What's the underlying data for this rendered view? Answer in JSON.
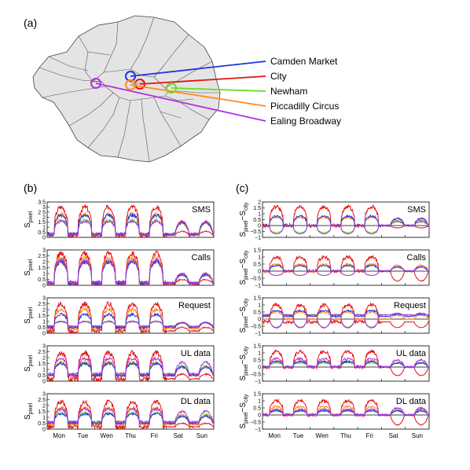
{
  "panels": {
    "a": "(a)",
    "b": "(b)",
    "c": "(c)"
  },
  "colors": {
    "Camden Market": "#2233dd",
    "City": "#e81010",
    "Newham": "#66dd22",
    "Piccadilly Circus": "#ff8c1a",
    "Ealing Broadway": "#b030e0"
  },
  "map": {
    "locations": [
      "Camden Market",
      "City",
      "Newham",
      "Piccadilly Circus",
      "Ealing Broadway"
    ]
  },
  "chart_data": [
    {
      "type": "line",
      "panel": "b",
      "title": "SMS",
      "ylabel_main": "S",
      "ylabel_sub": "pixel",
      "ylim": [
        0,
        3.5
      ],
      "yticks": [
        "0",
        "0.5",
        "1",
        "1.5",
        "2",
        "2.5",
        "3",
        "3.5"
      ],
      "categories": [
        "Mon",
        "Tue",
        "Wen",
        "Thu",
        "Fri",
        "Sat",
        "Sun"
      ],
      "series": [
        {
          "name": "City",
          "weekday_peak": 3.0,
          "weekend_peak": 0.6,
          "base": 0.2
        },
        {
          "name": "Camden Market",
          "weekday_peak": 2.2,
          "weekend_peak": 1.5,
          "base": 0.3
        },
        {
          "name": "Piccadilly Circus",
          "weekday_peak": 2.3,
          "weekend_peak": 1.6,
          "base": 0.3
        },
        {
          "name": "Newham",
          "weekday_peak": 1.7,
          "weekend_peak": 1.4,
          "base": 0.3
        },
        {
          "name": "Ealing Broadway",
          "weekday_peak": 1.6,
          "weekend_peak": 1.5,
          "base": 0.3
        }
      ]
    },
    {
      "type": "line",
      "panel": "b",
      "title": "Calls",
      "ylabel_main": "S",
      "ylabel_sub": "pixel",
      "ylim": [
        0,
        3
      ],
      "yticks": [
        "0",
        "0.5",
        "1",
        "1.5",
        "2",
        "2.5",
        "3"
      ],
      "categories": [
        "Mon",
        "Tue",
        "Wen",
        "Thu",
        "Fri",
        "Sat",
        "Sun"
      ],
      "series": [
        {
          "name": "City",
          "weekday_peak": 2.7,
          "weekend_peak": 0.5,
          "base": 0.1
        },
        {
          "name": "Camden Market",
          "weekday_peak": 2.0,
          "weekend_peak": 0.9,
          "base": 0.2
        },
        {
          "name": "Piccadilly Circus",
          "weekday_peak": 2.3,
          "weekend_peak": 1.0,
          "base": 0.2
        },
        {
          "name": "Newham",
          "weekday_peak": 2.0,
          "weekend_peak": 0.9,
          "base": 0.2
        },
        {
          "name": "Ealing Broadway",
          "weekday_peak": 2.1,
          "weekend_peak": 1.0,
          "base": 0.2
        }
      ]
    },
    {
      "type": "line",
      "panel": "b",
      "title": "Request",
      "ylabel_main": "S",
      "ylabel_sub": "pixel",
      "ylim": [
        0,
        3
      ],
      "yticks": [
        "0",
        "0.5",
        "1",
        "1.5",
        "2",
        "2.5",
        "3"
      ],
      "categories": [
        "Mon",
        "Tue",
        "Wen",
        "Thu",
        "Fri",
        "Sat",
        "Sun"
      ],
      "series": [
        {
          "name": "City",
          "weekday_peak": 2.5,
          "weekend_peak": 0.5,
          "base": 0.2
        },
        {
          "name": "Camden Market",
          "weekday_peak": 1.6,
          "weekend_peak": 0.9,
          "base": 0.5
        },
        {
          "name": "Piccadilly Circus",
          "weekday_peak": 2.0,
          "weekend_peak": 0.9,
          "base": 0.4
        },
        {
          "name": "Newham",
          "weekday_peak": 1.0,
          "weekend_peak": 0.9,
          "base": 0.6
        },
        {
          "name": "Ealing Broadway",
          "weekday_peak": 1.0,
          "weekend_peak": 0.9,
          "base": 0.6
        }
      ]
    },
    {
      "type": "line",
      "panel": "b",
      "title": "UL data",
      "ylabel_main": "S",
      "ylabel_sub": "pixel",
      "ylim": [
        0,
        3
      ],
      "yticks": [
        "0",
        "0.5",
        "1",
        "1.5",
        "2",
        "2.5",
        "3"
      ],
      "categories": [
        "Mon",
        "Tue",
        "Wen",
        "Thu",
        "Fri",
        "Sat",
        "Sun"
      ],
      "series": [
        {
          "name": "City",
          "weekday_peak": 2.4,
          "weekend_peak": 0.6,
          "base": 0.2
        },
        {
          "name": "Camden Market",
          "weekday_peak": 1.5,
          "weekend_peak": 1.2,
          "base": 0.5
        },
        {
          "name": "Piccadilly Circus",
          "weekday_peak": 1.6,
          "weekend_peak": 1.2,
          "base": 0.5
        },
        {
          "name": "Newham",
          "weekday_peak": 1.5,
          "weekend_peak": 1.3,
          "base": 0.6
        },
        {
          "name": "Ealing Broadway",
          "weekday_peak": 1.9,
          "weekend_peak": 1.6,
          "base": 0.6
        }
      ]
    },
    {
      "type": "line",
      "panel": "b",
      "title": "DL data",
      "ylabel_main": "S",
      "ylabel_sub": "pixel",
      "ylim": [
        0,
        3
      ],
      "yticks": [
        "0",
        "0.5",
        "1",
        "1.5",
        "2",
        "2.5",
        "3"
      ],
      "categories": [
        "Mon",
        "Tue",
        "Wen",
        "Thu",
        "Fri",
        "Sat",
        "Sun"
      ],
      "series": [
        {
          "name": "City",
          "weekday_peak": 2.3,
          "weekend_peak": 0.5,
          "base": 0.2
        },
        {
          "name": "Camden Market",
          "weekday_peak": 1.3,
          "weekend_peak": 1.1,
          "base": 0.5
        },
        {
          "name": "Piccadilly Circus",
          "weekday_peak": 1.8,
          "weekend_peak": 1.2,
          "base": 0.4
        },
        {
          "name": "Newham",
          "weekday_peak": 1.4,
          "weekend_peak": 1.2,
          "base": 0.6
        },
        {
          "name": "Ealing Broadway",
          "weekday_peak": 1.7,
          "weekend_peak": 1.5,
          "base": 0.6
        }
      ]
    },
    {
      "type": "line",
      "panel": "c",
      "title": "SMS",
      "ylabel_main": "S",
      "ylabel_sub": "pixel",
      "ylabel_main2": "−S",
      "ylabel_sub2": "city",
      "ylim": [
        -1,
        2
      ],
      "yticks": [
        "−1",
        "−0.5",
        "0",
        "0.5",
        "1",
        "1.5",
        "2"
      ],
      "categories": [
        "Mon",
        "Tue",
        "Wen",
        "Thu",
        "Fri",
        "Sat",
        "Sun"
      ],
      "series": [
        {
          "name": "City",
          "weekday_peak": 1.6,
          "weekend_peak": -0.2,
          "base": 0.0
        },
        {
          "name": "Camden Market",
          "weekday_peak": 0.8,
          "weekend_peak": 0.6,
          "base": 0.0
        },
        {
          "name": "Piccadilly Circus",
          "weekday_peak": 0.7,
          "weekend_peak": 0.6,
          "base": 0.0
        },
        {
          "name": "Newham",
          "weekday_peak": -0.6,
          "weekend_peak": 0.3,
          "base": 0.0
        },
        {
          "name": "Ealing Broadway",
          "weekday_peak": -0.7,
          "weekend_peak": 0.4,
          "base": 0.0
        }
      ]
    },
    {
      "type": "line",
      "panel": "c",
      "title": "Calls",
      "ylabel_main": "S",
      "ylabel_sub": "pixel",
      "ylabel_main2": "−S",
      "ylabel_sub2": "city",
      "ylim": [
        -1,
        1.5
      ],
      "yticks": [
        "−1",
        "−0.5",
        "0",
        "0.5",
        "1",
        "1.5"
      ],
      "categories": [
        "Mon",
        "Tue",
        "Wen",
        "Thu",
        "Fri",
        "Sat",
        "Sun"
      ],
      "series": [
        {
          "name": "City",
          "weekday_peak": 1.0,
          "weekend_peak": -0.7,
          "base": 0.0
        },
        {
          "name": "Camden Market",
          "weekday_peak": 0.4,
          "weekend_peak": 0.3,
          "base": 0.0
        },
        {
          "name": "Piccadilly Circus",
          "weekday_peak": 0.5,
          "weekend_peak": 0.4,
          "base": 0.0
        },
        {
          "name": "Newham",
          "weekday_peak": -0.3,
          "weekend_peak": 0.3,
          "base": 0.0
        },
        {
          "name": "Ealing Broadway",
          "weekday_peak": -0.3,
          "weekend_peak": 0.3,
          "base": 0.0
        }
      ]
    },
    {
      "type": "line",
      "panel": "c",
      "title": "Request",
      "ylabel_main": "S",
      "ylabel_sub": "pixel",
      "ylabel_main2": "−S",
      "ylabel_sub2": "city",
      "ylim": [
        -1,
        1.5
      ],
      "yticks": [
        "−1",
        "−0.5",
        "0",
        "0.5",
        "1",
        "1.5"
      ],
      "categories": [
        "Mon",
        "Tue",
        "Wen",
        "Thu",
        "Fri",
        "Sat",
        "Sun"
      ],
      "series": [
        {
          "name": "City",
          "weekday_peak": 1.0,
          "weekend_peak": -0.6,
          "base": -0.2
        },
        {
          "name": "Camden Market",
          "weekday_peak": 0.6,
          "weekend_peak": 0.4,
          "base": 0.2
        },
        {
          "name": "Piccadilly Circus",
          "weekday_peak": 0.5,
          "weekend_peak": 0.3,
          "base": 0.0
        },
        {
          "name": "Newham",
          "weekday_peak": -0.6,
          "weekend_peak": 0.3,
          "base": 0.3
        },
        {
          "name": "Ealing Broadway",
          "weekday_peak": -0.6,
          "weekend_peak": 0.3,
          "base": 0.3
        }
      ]
    },
    {
      "type": "line",
      "panel": "c",
      "title": "UL data",
      "ylabel_main": "S",
      "ylabel_sub": "pixel",
      "ylabel_main2": "−S",
      "ylabel_sub2": "city",
      "ylim": [
        -1,
        1.5
      ],
      "yticks": [
        "−1",
        "−0.5",
        "0",
        "0.5",
        "1",
        "1.5"
      ],
      "categories": [
        "Mon",
        "Tue",
        "Wen",
        "Thu",
        "Fri",
        "Sat",
        "Sun"
      ],
      "series": [
        {
          "name": "City",
          "weekday_peak": 1.1,
          "weekend_peak": -0.6,
          "base": 0.0
        },
        {
          "name": "Camden Market",
          "weekday_peak": 0.4,
          "weekend_peak": 0.3,
          "base": 0.0
        },
        {
          "name": "Piccadilly Circus",
          "weekday_peak": 0.4,
          "weekend_peak": 0.3,
          "base": 0.0
        },
        {
          "name": "Newham",
          "weekday_peak": 0.3,
          "weekend_peak": 0.3,
          "base": 0.0
        },
        {
          "name": "Ealing Broadway",
          "weekday_peak": 0.6,
          "weekend_peak": 0.5,
          "base": 0.0
        }
      ]
    },
    {
      "type": "line",
      "panel": "c",
      "title": "DL data",
      "ylabel_main": "S",
      "ylabel_sub": "pixel",
      "ylabel_main2": "−S",
      "ylabel_sub2": "city",
      "ylim": [
        -1,
        1.5
      ],
      "yticks": [
        "−1",
        "−0.5",
        "0",
        "0.5",
        "1",
        "1.5"
      ],
      "categories": [
        "Mon",
        "Tue",
        "Wen",
        "Thu",
        "Fri",
        "Sat",
        "Sun"
      ],
      "series": [
        {
          "name": "City",
          "weekday_peak": 1.0,
          "weekend_peak": -0.7,
          "base": 0.0
        },
        {
          "name": "Camden Market",
          "weekday_peak": 0.3,
          "weekend_peak": 0.3,
          "base": 0.0
        },
        {
          "name": "Piccadilly Circus",
          "weekday_peak": 0.6,
          "weekend_peak": 0.4,
          "base": 0.0
        },
        {
          "name": "Newham",
          "weekday_peak": 0.3,
          "weekend_peak": 0.3,
          "base": 0.0
        },
        {
          "name": "Ealing Broadway",
          "weekday_peak": 0.4,
          "weekend_peak": 0.5,
          "base": 0.0
        }
      ]
    }
  ]
}
